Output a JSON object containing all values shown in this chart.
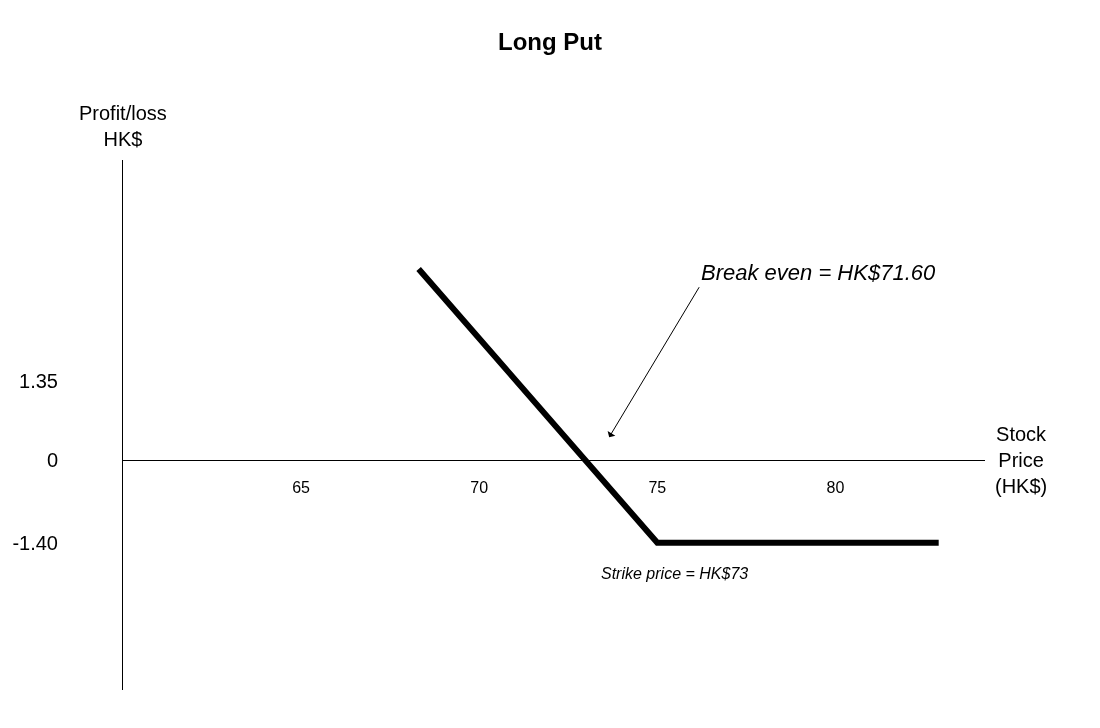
{
  "chart_data": {
    "type": "line",
    "title": "Long Put",
    "xlabel": "Stock\nPrice\n(HK$)",
    "ylabel": "Profit/loss\nHK$",
    "x": [
      68.3,
      75,
      82.9
    ],
    "series": [
      {
        "color": "#000000",
        "values": [
          3.25,
          -1.4,
          -1.4
        ]
      }
    ],
    "xlim": [
      60,
      84.2
    ],
    "xticks": [
      65,
      70,
      75,
      80
    ],
    "ylim": [
      -3.9,
      5.1
    ],
    "yticks": [
      {
        "value": 1.35,
        "label": "1.35"
      },
      0,
      {
        "value": -1.4,
        "label": "-1.40"
      }
    ],
    "annotations": [
      "Break even = HK$71.60",
      "Strike price = HK$73"
    ],
    "marker": "none",
    "line_style": "solid"
  }
}
